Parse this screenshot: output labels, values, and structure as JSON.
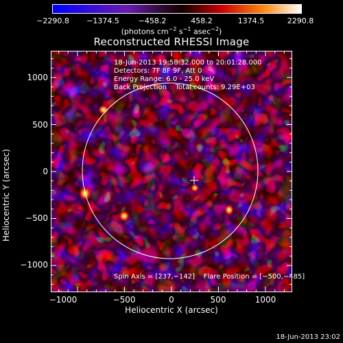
{
  "colorbar": {
    "tick_labels": [
      "−2290.8",
      "−1374.5",
      "−458.2",
      "458.2",
      "1374.5",
      "2290.8"
    ],
    "units_text": "(photons cm",
    "units_sup1": "−2",
    "units_mid": " s",
    "units_sup2": "−1",
    "units_mid2": " asec",
    "units_sup3": "−2",
    "units_end": ")"
  },
  "title": "Reconstructed RHESSI Image",
  "axes": {
    "xlabel": "Heliocentric X (arcsec)",
    "ylabel": "Heliocentric Y (arcsec)",
    "x_ticks": [
      "−1000",
      "−500",
      "0",
      "500",
      "1000"
    ],
    "y_ticks": [
      "1000",
      "500",
      "0",
      "−500",
      "−1000"
    ]
  },
  "info": {
    "time_range": "18-Jun-2013 19:58:32.000 to 20:01:28.000",
    "detectors": "Detectors: 7F 8F 9F, Att 0",
    "energy": "Energy Range: 6.0 - 25.0 keV",
    "method": "Back Projection    Total counts: 9.29E+03",
    "spin_flare": "Spin Axis = [237,−142]    Flare Position = [−500,−485]"
  },
  "timestamp": "18-Jun-2013 23:02"
}
